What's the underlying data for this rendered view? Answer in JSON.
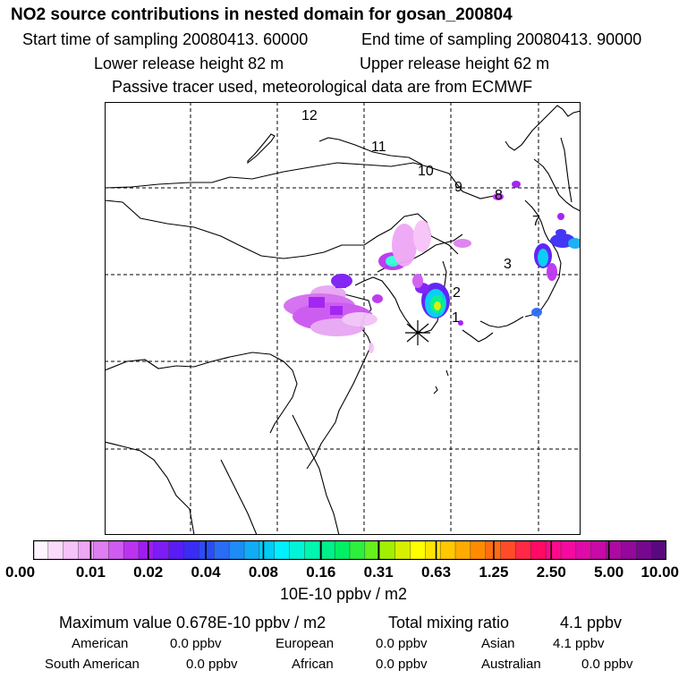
{
  "header": {
    "title": "NO2 source contributions in nested domain for gosan_200804",
    "start_time": "Start time of sampling 20080413. 60000",
    "end_time": "End time of sampling 20080413. 90000",
    "lower_release": "Lower release height   82 m",
    "upper_release": "Upper release height   62 m",
    "tracer_note": "Passive tracer used, meteorological data are from ECMWF"
  },
  "map": {
    "receptor_marker": "gosan-receptor",
    "trajectory_labels": [
      "1",
      "2",
      "3",
      "7",
      "8",
      "9",
      "10",
      "11",
      "12"
    ],
    "grid": "dashed",
    "coastline_color": "#000000"
  },
  "colorbar": {
    "tick_labels": [
      "0.00",
      "0.01",
      "0.02",
      "0.04",
      "0.08",
      "0.16",
      "0.31",
      "0.63",
      "1.25",
      "2.50",
      "5.00",
      "10.00"
    ],
    "colors": [
      "#fff4ff",
      "#fbdbfb",
      "#f7c2f7",
      "#efa6f5",
      "#df7ef0",
      "#cf5cf0",
      "#bb33f0",
      "#9f1cf0",
      "#7d1cf5",
      "#5a1cf5",
      "#3a2cf5",
      "#2b4cf5",
      "#2a6cf5",
      "#1d8cf5",
      "#10acf5",
      "#00ccf5",
      "#00f0ff",
      "#00f5d6",
      "#00f5b0",
      "#00f08a",
      "#00f064",
      "#2df03c",
      "#66f01c",
      "#a2f000",
      "#d8f000",
      "#ffff00",
      "#ffe400",
      "#ffc800",
      "#ffac00",
      "#ff8c00",
      "#ff6c14",
      "#ff4c28",
      "#ff2846",
      "#ff0a64",
      "#ff0a8c",
      "#f50aa0",
      "#e00aa8",
      "#c80aa6",
      "#ae0aa2",
      "#94089a",
      "#760890",
      "#5a0880"
    ],
    "units": "10E-10 ppbv / m2"
  },
  "stats": {
    "maximum_value": "Maximum value  0.678E-10 ppbv / m2",
    "total_mixing_label": "Total mixing ratio",
    "total_mixing_value": "4.1 ppbv",
    "regions": [
      {
        "label": "American",
        "value": "0.0 ppbv"
      },
      {
        "label": "European",
        "value": "0.0 ppbv"
      },
      {
        "label": "Asian",
        "value": "4.1 ppbv"
      },
      {
        "label": "South American",
        "value": "0.0 ppbv"
      },
      {
        "label": "African",
        "value": "0.0 ppbv"
      },
      {
        "label": "Australian",
        "value": "0.0 ppbv"
      }
    ]
  }
}
